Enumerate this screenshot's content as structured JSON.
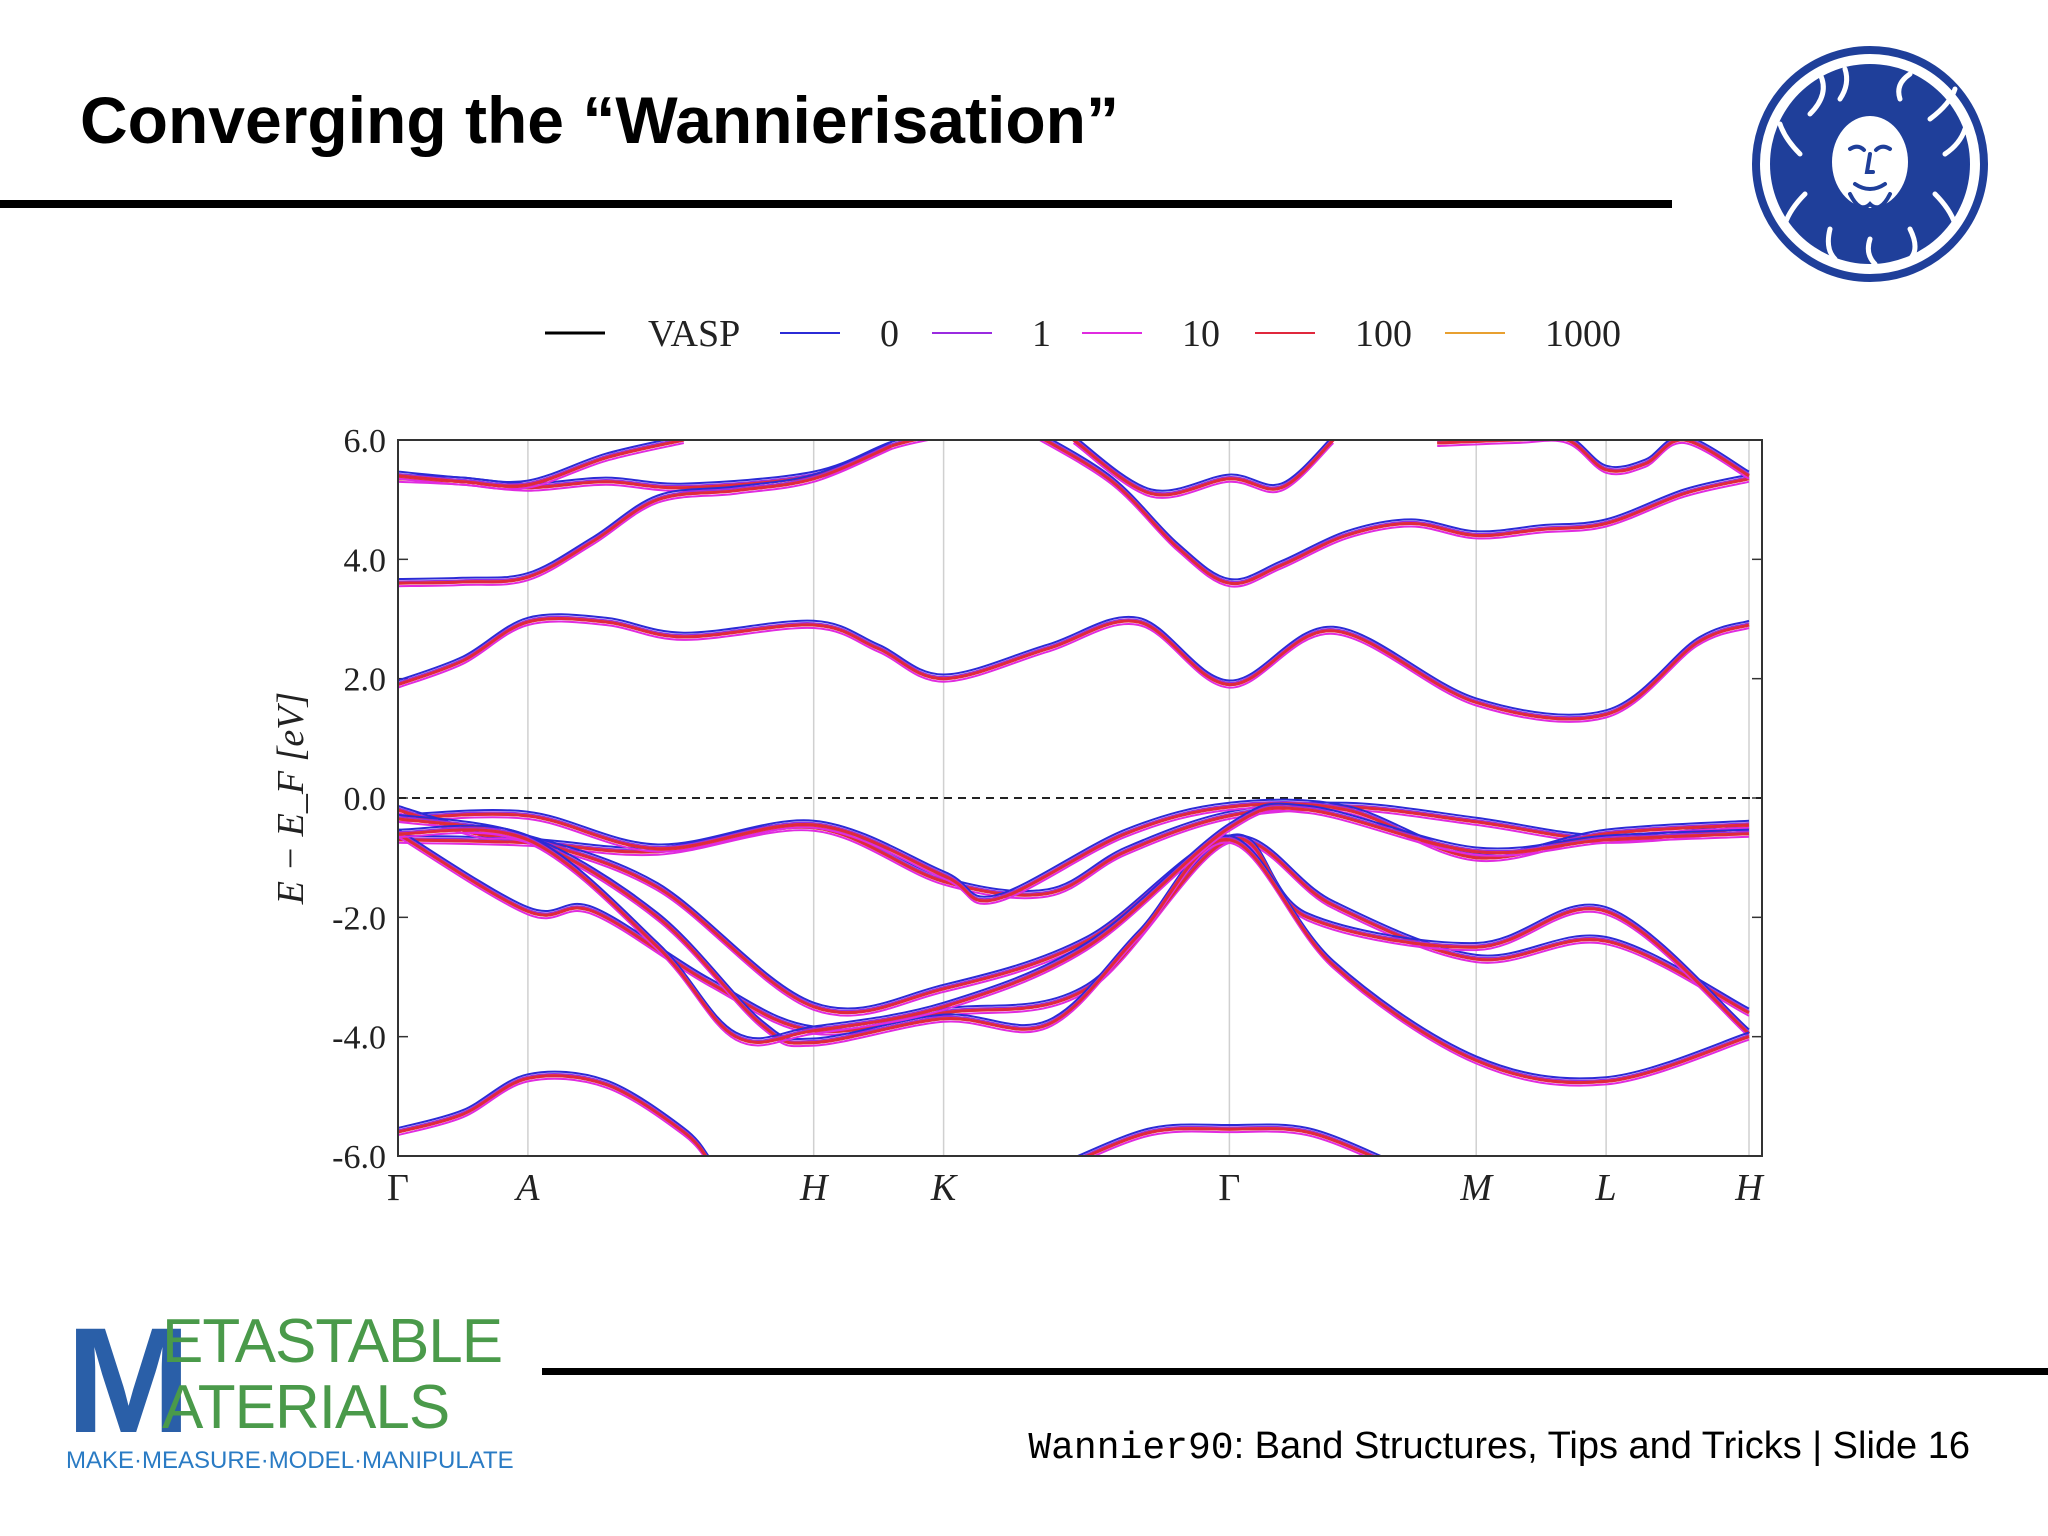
{
  "slide": {
    "title": "Converging the “Wannierisation”",
    "footer_code": "Wannier90",
    "footer_text": ": Band Structures, Tips and Tricks | Slide 16",
    "logo_initial_1": "M",
    "logo_line1": "ETASTABLE",
    "logo_line2": "ATERIALS",
    "logo_tagline": "MAKE·MEASURE·MODEL·MANIPULATE"
  },
  "chart_data": {
    "type": "line",
    "xlabel": "",
    "ylabel": "E − E_F [eV]",
    "ylim": [
      -6.0,
      6.0
    ],
    "yticks": [
      -6.0,
      -4.0,
      -2.0,
      0.0,
      2.0,
      4.0,
      6.0
    ],
    "ytick_labels": [
      "-6.0",
      "-4.0",
      "-2.0",
      "0.0",
      "2.0",
      "4.0",
      "6.0"
    ],
    "xlim": [
      0,
      10.5
    ],
    "kpoints": [
      {
        "label": "Γ",
        "x": 0.0
      },
      {
        "label": "A",
        "x": 1.0
      },
      {
        "label": "H",
        "x": 3.2
      },
      {
        "label": "K",
        "x": 4.2
      },
      {
        "label": "Γ",
        "x": 6.4
      },
      {
        "label": "M",
        "x": 8.3
      },
      {
        "label": "L",
        "x": 9.3
      },
      {
        "label": "H",
        "x": 10.4
      }
    ],
    "fermi_level": 0.0,
    "legend_position": "top",
    "legend": [
      {
        "label": "VASP",
        "color": "#000000"
      },
      {
        "label": "0",
        "color": "#2b2bd6"
      },
      {
        "label": "1",
        "color": "#9a2be0"
      },
      {
        "label": "10",
        "color": "#e02be0"
      },
      {
        "label": "100",
        "color": "#e0283c"
      },
      {
        "label": "1000",
        "color": "#e8a030"
      }
    ],
    "bands": [
      [
        [
          0,
          5.35
        ],
        [
          0.5,
          5.3
        ],
        [
          1,
          5.2
        ],
        [
          1.6,
          5.3
        ],
        [
          2.2,
          5.2
        ],
        [
          3.2,
          5.4
        ],
        [
          3.8,
          5.9
        ],
        [
          4.2,
          6.1
        ]
      ],
      [
        [
          0,
          3.6
        ],
        [
          0.5,
          3.62
        ],
        [
          1,
          3.7
        ],
        [
          1.5,
          4.3
        ],
        [
          2,
          5.0
        ],
        [
          2.6,
          5.15
        ],
        [
          3.2,
          5.35
        ],
        [
          3.8,
          5.9
        ]
      ],
      [
        [
          0,
          5.4
        ],
        [
          0.5,
          5.3
        ],
        [
          1,
          5.25
        ],
        [
          1.6,
          5.7
        ],
        [
          2.2,
          6.0
        ]
      ],
      [
        [
          0,
          1.9
        ],
        [
          0.5,
          2.3
        ],
        [
          1,
          2.95
        ],
        [
          1.6,
          2.95
        ],
        [
          2.2,
          2.7
        ],
        [
          3.2,
          2.9
        ],
        [
          3.7,
          2.5
        ],
        [
          4.2,
          2.0
        ],
        [
          5.0,
          2.5
        ],
        [
          5.7,
          2.95
        ],
        [
          6.4,
          1.9
        ],
        [
          7.2,
          2.8
        ],
        [
          8.3,
          1.6
        ],
        [
          9.3,
          1.4
        ],
        [
          10.0,
          2.6
        ],
        [
          10.4,
          2.9
        ]
      ],
      [
        [
          4.9,
          6.1
        ],
        [
          5.5,
          5.3
        ],
        [
          6.0,
          4.2
        ],
        [
          6.4,
          3.6
        ],
        [
          6.8,
          3.9
        ],
        [
          7.3,
          4.4
        ],
        [
          7.8,
          4.6
        ],
        [
          8.3,
          4.4
        ],
        [
          8.8,
          4.5
        ],
        [
          9.3,
          4.6
        ],
        [
          9.9,
          5.1
        ],
        [
          10.4,
          5.35
        ]
      ],
      [
        [
          5.2,
          6.0
        ],
        [
          5.8,
          5.1
        ],
        [
          6.4,
          5.35
        ],
        [
          6.8,
          5.2
        ],
        [
          7.2,
          6.0
        ]
      ],
      [
        [
          8.0,
          5.95
        ],
        [
          8.6,
          6.0
        ],
        [
          9.0,
          6.0
        ],
        [
          9.3,
          5.5
        ],
        [
          9.6,
          5.6
        ],
        [
          9.9,
          6.0
        ],
        [
          10.4,
          5.4
        ]
      ],
      [
        [
          0,
          -0.7
        ],
        [
          1,
          -0.75
        ],
        [
          2,
          -0.9
        ],
        [
          3.2,
          -0.5
        ],
        [
          4.2,
          -1.4
        ],
        [
          5.0,
          -1.6
        ],
        [
          5.6,
          -0.9
        ],
        [
          6.4,
          -0.3
        ],
        [
          7.3,
          -0.15
        ],
        [
          8.3,
          -0.4
        ],
        [
          9.3,
          -0.7
        ],
        [
          10.4,
          -0.5
        ]
      ],
      [
        [
          0,
          -0.35
        ],
        [
          1,
          -0.3
        ],
        [
          2,
          -0.85
        ],
        [
          3.2,
          -0.45
        ],
        [
          4.2,
          -1.3
        ],
        [
          4.6,
          -1.7
        ],
        [
          5.6,
          -0.6
        ],
        [
          6.4,
          -0.15
        ],
        [
          7.3,
          -0.2
        ],
        [
          8.3,
          -1.0
        ],
        [
          9.3,
          -0.6
        ],
        [
          10.4,
          -0.45
        ]
      ],
      [
        [
          0,
          -0.2
        ],
        [
          0.6,
          -0.6
        ],
        [
          1,
          -0.7
        ],
        [
          2,
          -1.5
        ],
        [
          3.2,
          -3.5
        ],
        [
          4.2,
          -3.2
        ],
        [
          5.3,
          -2.4
        ],
        [
          6.4,
          -0.7
        ],
        [
          7.2,
          -1.8
        ],
        [
          8.3,
          -2.7
        ],
        [
          9.3,
          -2.4
        ],
        [
          10.4,
          -3.6
        ]
      ],
      [
        [
          0,
          -0.6
        ],
        [
          1,
          -1.9
        ],
        [
          1.5,
          -1.9
        ],
        [
          2.4,
          -3.1
        ],
        [
          3.2,
          -3.9
        ],
        [
          4.2,
          -3.6
        ],
        [
          5.3,
          -3.2
        ],
        [
          6.4,
          -0.7
        ],
        [
          7.0,
          -2.0
        ],
        [
          8.3,
          -2.5
        ],
        [
          9.3,
          -1.9
        ],
        [
          10.4,
          -3.95
        ]
      ],
      [
        [
          0,
          -0.35
        ],
        [
          1,
          -0.7
        ],
        [
          2,
          -2.0
        ],
        [
          2.8,
          -3.8
        ],
        [
          3.2,
          -4.1
        ],
        [
          4.2,
          -3.7
        ],
        [
          5.0,
          -3.8
        ],
        [
          5.7,
          -2.3
        ],
        [
          6.4,
          -0.7
        ],
        [
          7.2,
          -2.8
        ],
        [
          8.3,
          -4.4
        ],
        [
          9.3,
          -4.75
        ],
        [
          10.4,
          -4.0
        ]
      ],
      [
        [
          0,
          -0.6
        ],
        [
          1,
          -0.7
        ],
        [
          2,
          -2.5
        ],
        [
          2.6,
          -4.0
        ],
        [
          3.2,
          -3.9
        ],
        [
          4.2,
          -3.5
        ],
        [
          5.3,
          -2.5
        ],
        [
          6.4,
          -0.5
        ],
        [
          7.0,
          -0.2
        ],
        [
          8.3,
          -0.9
        ],
        [
          9.3,
          -0.7
        ],
        [
          10.4,
          -0.6
        ]
      ],
      [
        [
          0,
          -5.6
        ],
        [
          0.5,
          -5.3
        ],
        [
          1,
          -4.7
        ],
        [
          1.6,
          -4.8
        ],
        [
          2.2,
          -5.6
        ],
        [
          2.4,
          -6.1
        ]
      ],
      [
        [
          5.2,
          -6.1
        ],
        [
          5.8,
          -5.6
        ],
        [
          6.4,
          -5.55
        ],
        [
          7.0,
          -5.6
        ],
        [
          7.6,
          -6.1
        ]
      ]
    ]
  }
}
